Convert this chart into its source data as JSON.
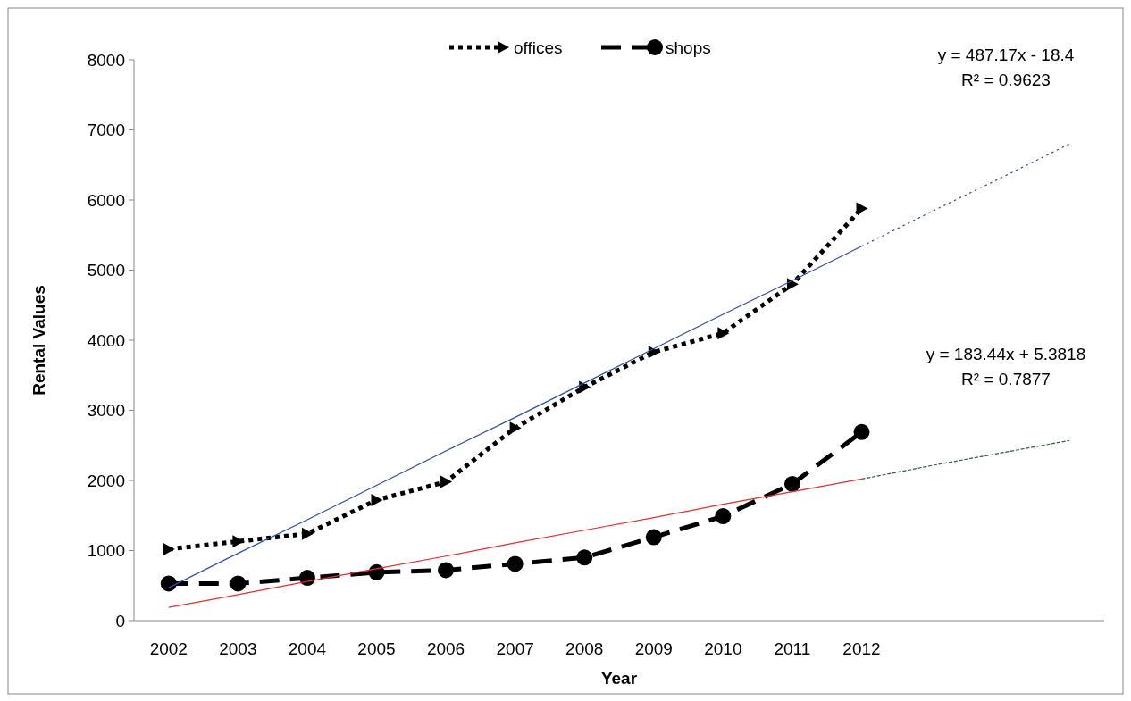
{
  "chart_data": {
    "type": "line",
    "xlabel": "Year",
    "ylabel": "Rental Values",
    "categories": [
      "2002",
      "2003",
      "2004",
      "2005",
      "2006",
      "2007",
      "2008",
      "2009",
      "2010",
      "2011",
      "2012",
      null,
      null,
      null
    ],
    "ylim": [
      0,
      8000
    ],
    "yticks": [
      0,
      1000,
      2000,
      3000,
      4000,
      5000,
      6000,
      7000,
      8000
    ],
    "grid": false,
    "legend": "top",
    "series": [
      {
        "name": "offices",
        "color": "#000000",
        "line_style": "dotted",
        "marker": "triangle",
        "values": [
          1020,
          1130,
          1240,
          1720,
          1980,
          2750,
          3330,
          3830,
          4100,
          4800,
          5880,
          null,
          null,
          null
        ]
      },
      {
        "name": "shops",
        "color": "#000000",
        "line_style": "dashed",
        "marker": "circle",
        "values": [
          530,
          530,
          610,
          690,
          720,
          810,
          900,
          1190,
          1490,
          1950,
          2690,
          null,
          null,
          null
        ]
      },
      {
        "color": "#2f4f9f",
        "line_style": "solid",
        "marker": "none",
        "values": [
          470,
          960,
          1440,
          1930,
          2420,
          2900,
          3390,
          3880,
          4370,
          4850,
          5340,
          null,
          null,
          null
        ]
      },
      {
        "color": "#2f4f9f",
        "line_style": "dotted",
        "marker": "none",
        "values": [
          null,
          null,
          null,
          null,
          null,
          null,
          null,
          null,
          null,
          null,
          5340,
          5830,
          6310,
          6800
        ]
      },
      {
        "color": "#e03030",
        "line_style": "solid",
        "marker": "none",
        "values": [
          190,
          370,
          560,
          740,
          920,
          1110,
          1290,
          1470,
          1660,
          1840,
          2020,
          null,
          null,
          null
        ]
      },
      {
        "color": "#2f5f3f",
        "line_style": "dashed",
        "marker": "none",
        "values": [
          null,
          null,
          null,
          null,
          null,
          null,
          null,
          null,
          null,
          null,
          2020,
          2210,
          2390,
          2570
        ]
      }
    ],
    "annotations": [
      "y = 487.17x - 18.4",
      "R² = 0.9623",
      "y = 183.44x + 5.3818",
      "R² = 0.7877"
    ]
  }
}
